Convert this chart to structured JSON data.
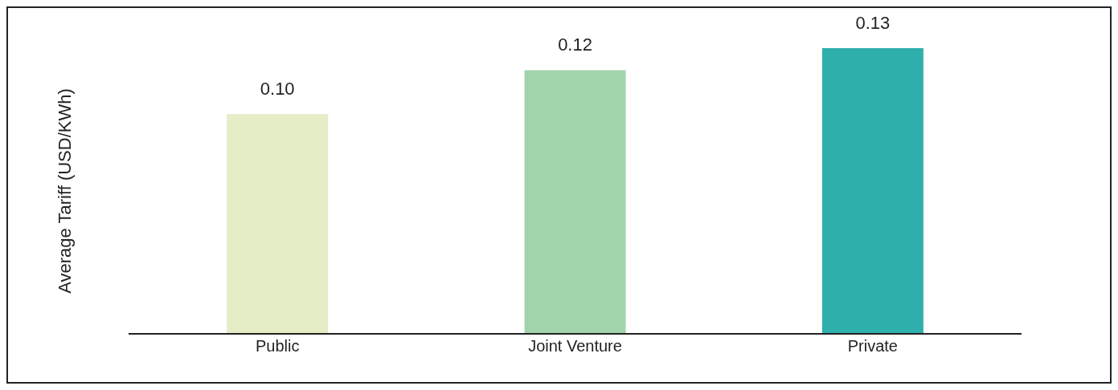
{
  "chart_data": {
    "type": "bar",
    "ylabel": "Average Tariff (USD/KWh)",
    "categories": [
      "Public",
      "Joint Venture",
      "Private"
    ],
    "values": [
      0.1,
      0.12,
      0.13
    ],
    "value_labels": [
      "0.10",
      "0.12",
      "0.13"
    ],
    "colors": [
      "#e4edc6",
      "#a2d4ac",
      "#2fafac"
    ]
  }
}
